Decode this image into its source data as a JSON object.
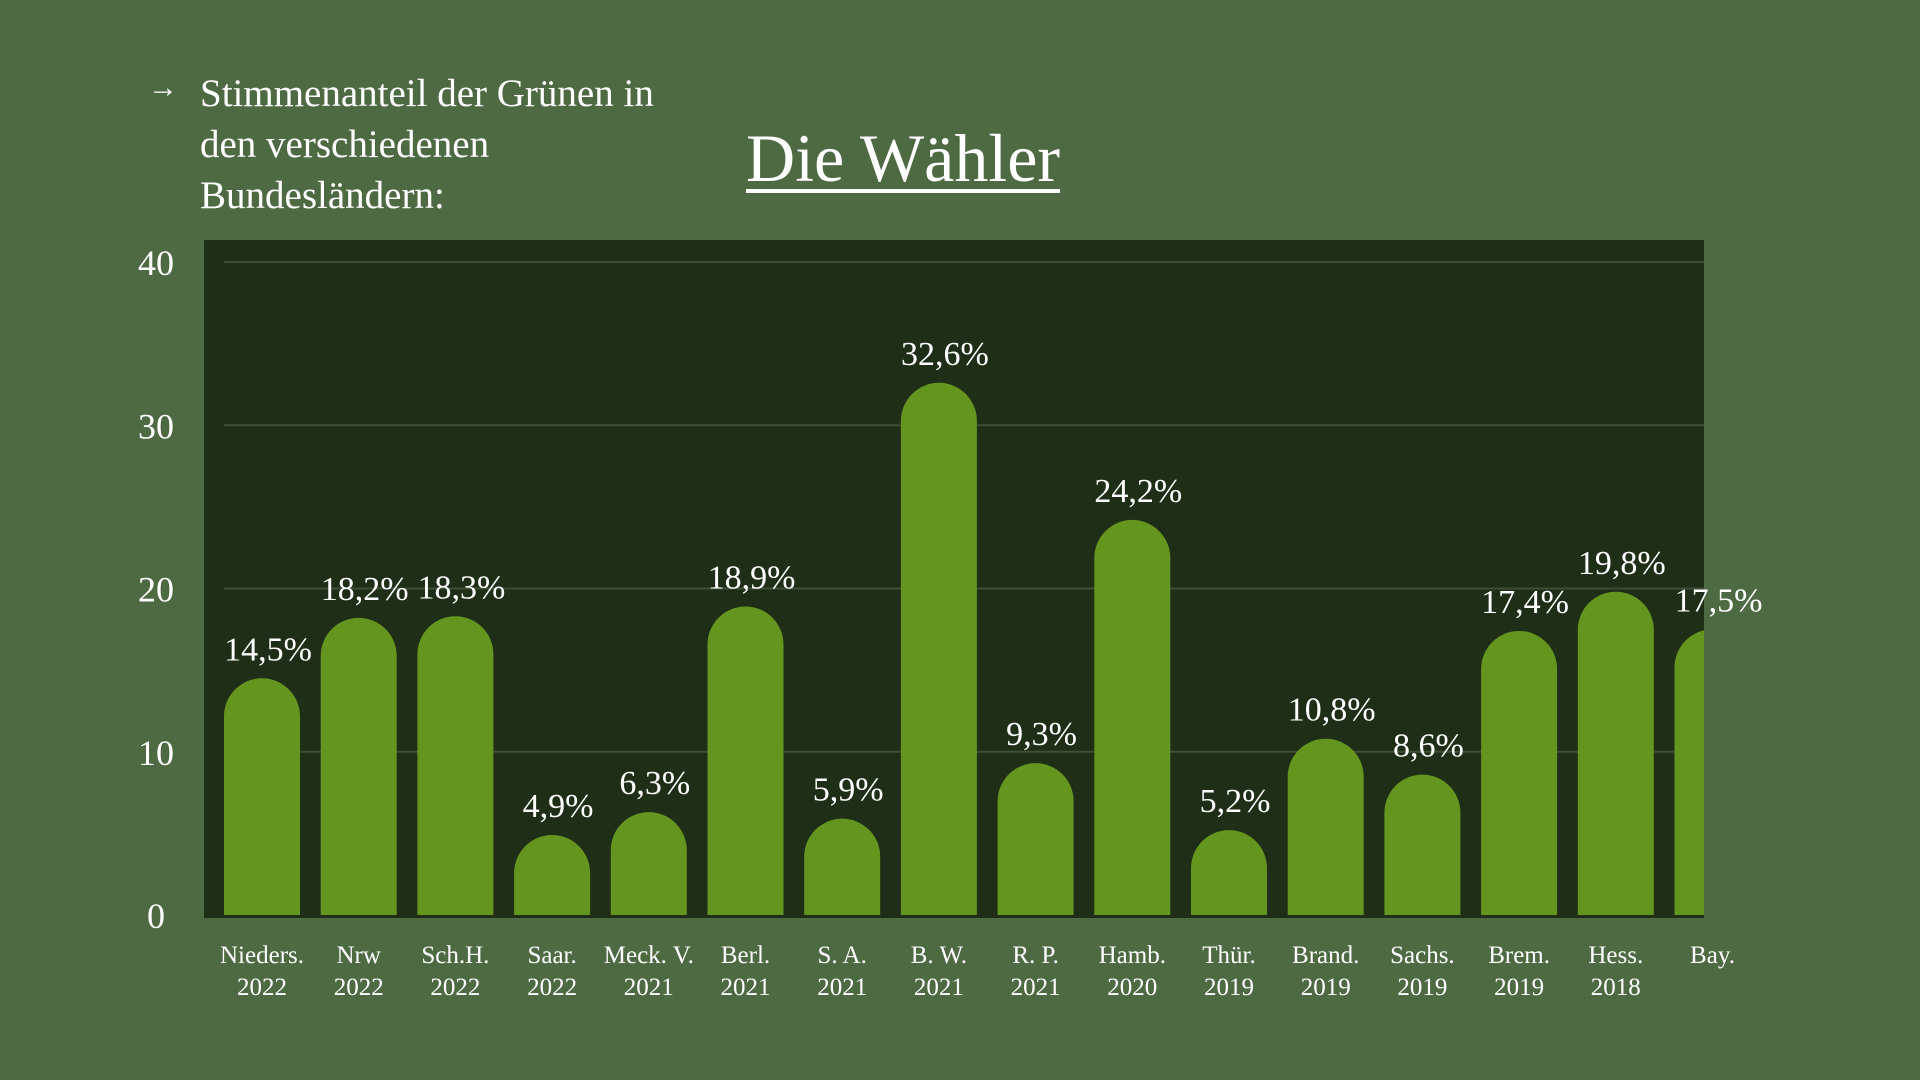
{
  "header": {
    "arrow_icon": "→",
    "subtitle_lines": [
      "Stimmenanteil der Grünen in",
      "den verschiedenen",
      "Bundesländern:"
    ],
    "title": "Die Wähler"
  },
  "colors": {
    "background": "#4e6a43",
    "plot_background": "#1f2e17",
    "bar": "#63951f",
    "text": "#ffffff",
    "grid": "#3e4f35"
  },
  "chart_data": {
    "type": "bar",
    "title": "Die Wähler",
    "subtitle": "Stimmenanteil der Grünen in den verschiedenen Bundesländern:",
    "xlabel": "",
    "ylabel": "",
    "ylim": [
      0,
      40
    ],
    "yticks": [
      0,
      10,
      20,
      30,
      40
    ],
    "grid": true,
    "categories": [
      {
        "name": "Nieders.",
        "year": "2022"
      },
      {
        "name": "Nrw",
        "year": "2022"
      },
      {
        "name": "Sch.H.",
        "year": "2022"
      },
      {
        "name": "Saar.",
        "year": "2022"
      },
      {
        "name": "Meck. V.",
        "year": "2021"
      },
      {
        "name": "Berl.",
        "year": "2021"
      },
      {
        "name": "S. A.",
        "year": "2021"
      },
      {
        "name": "B. W.",
        "year": "2021"
      },
      {
        "name": "R. P.",
        "year": "2021"
      },
      {
        "name": "Hamb.",
        "year": "2020"
      },
      {
        "name": "Thür.",
        "year": "2019"
      },
      {
        "name": "Brand.",
        "year": "2019"
      },
      {
        "name": "Sachs.",
        "year": "2019"
      },
      {
        "name": "Brem.",
        "year": "2019"
      },
      {
        "name": "Hess.",
        "year": "2018"
      },
      {
        "name": "Bay.",
        "year": ""
      }
    ],
    "values": [
      14.5,
      18.2,
      18.3,
      4.9,
      6.3,
      18.9,
      5.9,
      32.6,
      9.3,
      24.2,
      5.2,
      10.8,
      8.6,
      17.4,
      19.8,
      17.5
    ],
    "value_labels": [
      "14,5%",
      "18,2%",
      "18,3%",
      "4,9%",
      "6,3%",
      "18,9%",
      "5,9%",
      "32,6%",
      "9,3%",
      "24,2%",
      "5,2%",
      "10,8%",
      "8,6%",
      "17,4%",
      "19,8%",
      "17,5%"
    ]
  }
}
